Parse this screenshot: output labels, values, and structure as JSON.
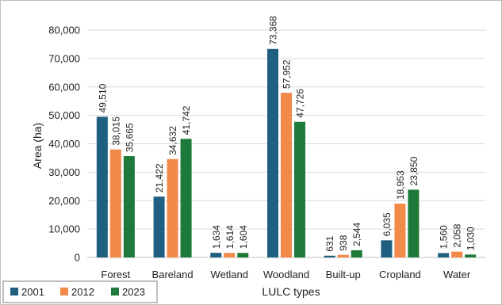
{
  "chart_data": {
    "type": "bar",
    "title": "",
    "xlabel": "LULC types",
    "ylabel": "Area (ha)",
    "categories": [
      "Forest",
      "Bareland",
      "Wetland",
      "Woodland",
      "Built-up",
      "Cropland",
      "Water"
    ],
    "series": [
      {
        "name": "2001",
        "color": "#1f5f7f",
        "values": [
          49510,
          21422,
          1634,
          73368,
          631,
          6035,
          1560
        ],
        "labels": [
          "49,510",
          "21,422",
          "1,634",
          "73,368",
          "631",
          "6,035",
          "1,560"
        ]
      },
      {
        "name": "2012",
        "color": "#f28a4b",
        "values": [
          38015,
          34632,
          1614,
          57952,
          938,
          18953,
          2058
        ],
        "labels": [
          "38,015",
          "34,632",
          "1,614",
          "57,952",
          "938",
          "18,953",
          "2,058"
        ]
      },
      {
        "name": "2023",
        "color": "#1e7a3a",
        "values": [
          35665,
          41742,
          1604,
          47726,
          2544,
          23850,
          1030
        ],
        "labels": [
          "35,665",
          "41,742",
          "1,604",
          "47,726",
          "2,544",
          "23,850",
          "1,030"
        ]
      }
    ],
    "ylim": [
      0,
      80000
    ],
    "yticks": [
      0,
      10000,
      20000,
      30000,
      40000,
      50000,
      60000,
      70000,
      80000
    ],
    "ytick_labels": [
      "0",
      "10,000",
      "20,000",
      "30,000",
      "40,000",
      "50,000",
      "60,000",
      "70,000",
      "80,000"
    ],
    "grid": true,
    "legend_position": "bottom-left"
  }
}
